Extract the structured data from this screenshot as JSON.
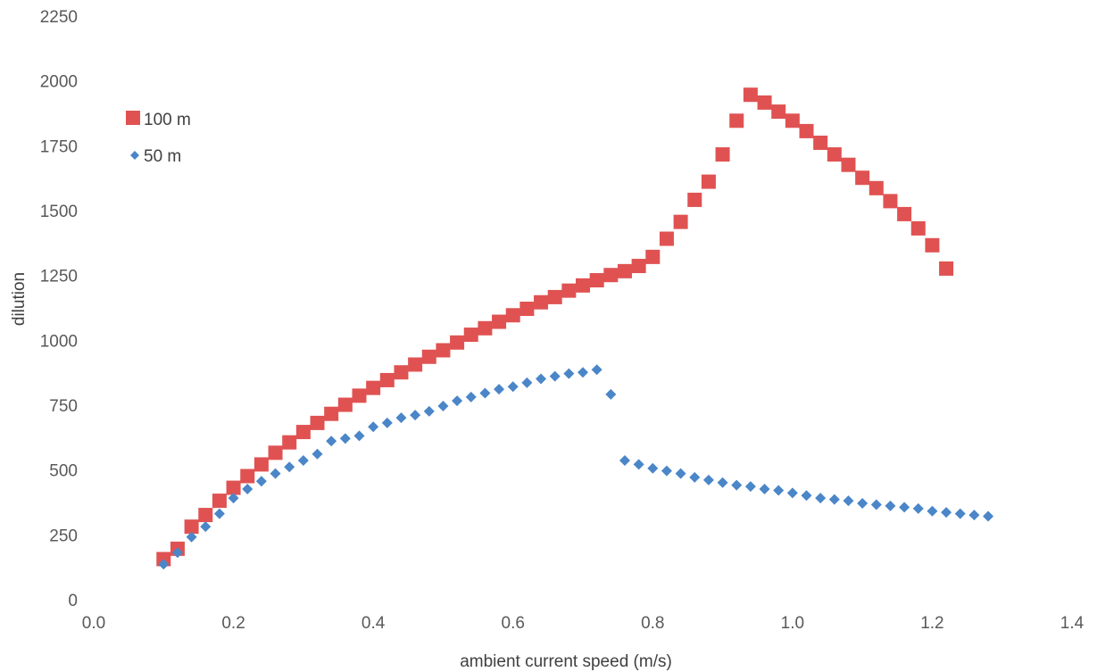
{
  "chart_data": {
    "type": "scatter",
    "title": "",
    "xlabel": "ambient current speed (m/s)",
    "ylabel": "dilution",
    "xlim": [
      0,
      1.4
    ],
    "ylim": [
      0,
      2250
    ],
    "x_ticks": [
      "0.0",
      "0.2",
      "0.4",
      "0.6",
      "0.8",
      "1.0",
      "1.2",
      "1.4"
    ],
    "y_ticks": [
      "0",
      "250",
      "500",
      "750",
      "1000",
      "1250",
      "1500",
      "1750",
      "2000",
      "2250"
    ],
    "grid": false,
    "legend_position": "top-left",
    "series": [
      {
        "name": "100 m",
        "marker": "square",
        "color": "#e05252",
        "points": [
          [
            0.1,
            160
          ],
          [
            0.12,
            200
          ],
          [
            0.14,
            285
          ],
          [
            0.16,
            330
          ],
          [
            0.18,
            385
          ],
          [
            0.2,
            435
          ],
          [
            0.22,
            480
          ],
          [
            0.24,
            525
          ],
          [
            0.26,
            570
          ],
          [
            0.28,
            610
          ],
          [
            0.3,
            650
          ],
          [
            0.32,
            685
          ],
          [
            0.34,
            720
          ],
          [
            0.36,
            755
          ],
          [
            0.38,
            790
          ],
          [
            0.4,
            820
          ],
          [
            0.42,
            850
          ],
          [
            0.44,
            880
          ],
          [
            0.46,
            910
          ],
          [
            0.48,
            940
          ],
          [
            0.5,
            965
          ],
          [
            0.52,
            995
          ],
          [
            0.54,
            1025
          ],
          [
            0.56,
            1050
          ],
          [
            0.58,
            1075
          ],
          [
            0.6,
            1100
          ],
          [
            0.62,
            1125
          ],
          [
            0.64,
            1150
          ],
          [
            0.66,
            1170
          ],
          [
            0.68,
            1195
          ],
          [
            0.7,
            1215
          ],
          [
            0.72,
            1235
          ],
          [
            0.74,
            1255
          ],
          [
            0.76,
            1270
          ],
          [
            0.78,
            1290
          ],
          [
            0.8,
            1325
          ],
          [
            0.82,
            1395
          ],
          [
            0.84,
            1460
          ],
          [
            0.86,
            1545
          ],
          [
            0.88,
            1615
          ],
          [
            0.9,
            1720
          ],
          [
            0.92,
            1850
          ],
          [
            0.94,
            1950
          ],
          [
            0.96,
            1920
          ],
          [
            0.98,
            1885
          ],
          [
            1.0,
            1850
          ],
          [
            1.02,
            1810
          ],
          [
            1.04,
            1765
          ],
          [
            1.06,
            1720
          ],
          [
            1.08,
            1680
          ],
          [
            1.1,
            1630
          ],
          [
            1.12,
            1590
          ],
          [
            1.14,
            1540
          ],
          [
            1.16,
            1490
          ],
          [
            1.18,
            1435
          ],
          [
            1.2,
            1370
          ],
          [
            1.22,
            1280
          ]
        ]
      },
      {
        "name": "50 m",
        "marker": "diamond",
        "color": "#4a86c8",
        "points": [
          [
            0.1,
            140
          ],
          [
            0.12,
            185
          ],
          [
            0.14,
            245
          ],
          [
            0.16,
            285
          ],
          [
            0.18,
            335
          ],
          [
            0.2,
            395
          ],
          [
            0.22,
            430
          ],
          [
            0.24,
            460
          ],
          [
            0.26,
            490
          ],
          [
            0.28,
            515
          ],
          [
            0.3,
            540
          ],
          [
            0.32,
            565
          ],
          [
            0.34,
            615
          ],
          [
            0.36,
            625
          ],
          [
            0.38,
            635
          ],
          [
            0.4,
            670
          ],
          [
            0.42,
            685
          ],
          [
            0.44,
            705
          ],
          [
            0.46,
            715
          ],
          [
            0.48,
            730
          ],
          [
            0.5,
            750
          ],
          [
            0.52,
            770
          ],
          [
            0.54,
            785
          ],
          [
            0.56,
            800
          ],
          [
            0.58,
            815
          ],
          [
            0.6,
            825
          ],
          [
            0.62,
            840
          ],
          [
            0.64,
            855
          ],
          [
            0.66,
            865
          ],
          [
            0.68,
            875
          ],
          [
            0.7,
            880
          ],
          [
            0.72,
            890
          ],
          [
            0.74,
            795
          ],
          [
            0.76,
            540
          ],
          [
            0.78,
            525
          ],
          [
            0.8,
            510
          ],
          [
            0.82,
            500
          ],
          [
            0.84,
            490
          ],
          [
            0.86,
            475
          ],
          [
            0.88,
            465
          ],
          [
            0.9,
            455
          ],
          [
            0.92,
            445
          ],
          [
            0.94,
            440
          ],
          [
            0.96,
            430
          ],
          [
            0.98,
            425
          ],
          [
            1.0,
            415
          ],
          [
            1.02,
            405
          ],
          [
            1.04,
            395
          ],
          [
            1.06,
            390
          ],
          [
            1.08,
            385
          ],
          [
            1.1,
            375
          ],
          [
            1.12,
            370
          ],
          [
            1.14,
            365
          ],
          [
            1.16,
            360
          ],
          [
            1.18,
            355
          ],
          [
            1.2,
            345
          ],
          [
            1.22,
            340
          ],
          [
            1.24,
            335
          ],
          [
            1.26,
            330
          ],
          [
            1.28,
            325
          ]
        ]
      }
    ]
  }
}
